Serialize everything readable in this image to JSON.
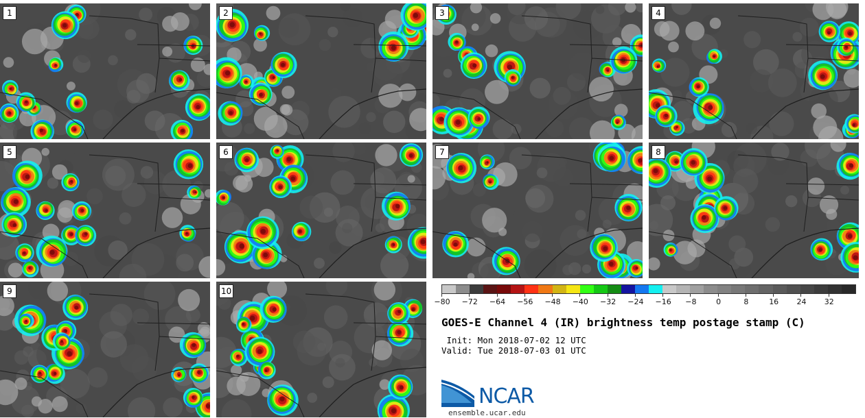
{
  "panels": [
    "1",
    "2",
    "3",
    "4",
    "5",
    "6",
    "7",
    "8",
    "9",
    "10"
  ],
  "colorbar": {
    "colors": [
      "#c8c8c8",
      "#8c8c8c",
      "#3c3c3c",
      "#5a1414",
      "#780a0a",
      "#b41414",
      "#ff3214",
      "#f07814",
      "#d2b414",
      "#f5e614",
      "#32ff14",
      "#14c814",
      "#148c14",
      "#1414a0",
      "#1478f0",
      "#14f0f0",
      "#c8c8c8",
      "#b4b4b4",
      "#a0a0a0",
      "#8c8c8c",
      "#828282",
      "#787878",
      "#6e6e6e",
      "#646464",
      "#5a5a5a",
      "#505050",
      "#464646",
      "#3c3c3c",
      "#323232",
      "#282828"
    ],
    "min": -80,
    "max": 40,
    "tick_labels": [
      "−80",
      "−72",
      "−64",
      "−56",
      "−48",
      "−40",
      "−32",
      "−24",
      "−16",
      "−8",
      "0",
      "8",
      "16",
      "24",
      "32"
    ],
    "tick_values": [
      -80,
      -72,
      -64,
      -56,
      -48,
      -40,
      -32,
      -24,
      -16,
      -8,
      0,
      8,
      16,
      24,
      32
    ]
  },
  "title": "GOES-E Channel 4 (IR) brightness temp postage stamp (C)",
  "init": " Init: Mon 2018-07-02 12 UTC",
  "valid": "Valid: Tue 2018-07-03 01 UTC",
  "logo": {
    "text": "NCAR",
    "url": "ensemble.ucar.edu",
    "color": "#0d5aa6"
  }
}
